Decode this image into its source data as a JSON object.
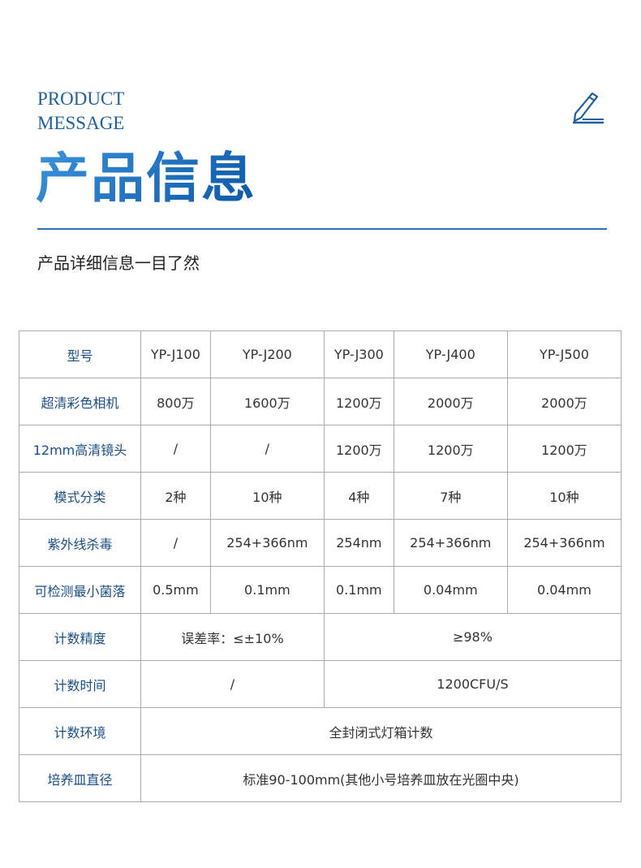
{
  "header": {
    "en_line1": "PRODUCT",
    "en_line2": "MESSAGE",
    "title": "产品信息",
    "subtitle": "产品详细信息一目了然",
    "accent": "#1f5f9e"
  },
  "table": {
    "models": [
      "YP-J100",
      "YP-J200",
      "YP-J300",
      "YP-J400",
      "YP-J500"
    ],
    "rows": [
      {
        "label": "型号"
      },
      {
        "label": "超清彩色相机",
        "cells": [
          "800万",
          "1600万",
          "1200万",
          "2000万",
          "2000万"
        ]
      },
      {
        "label": "12mm高清镜头",
        "cells": [
          "/",
          "/",
          "1200万",
          "1200万",
          "1200万"
        ]
      },
      {
        "label": "模式分类",
        "cells": [
          "2种",
          "10种",
          "4种",
          "7种",
          "10种"
        ]
      },
      {
        "label": "紫外线杀毒",
        "cells": [
          "/",
          "254+366nm",
          "254nm",
          "254+366nm",
          "254+366nm"
        ]
      },
      {
        "label": "可检测最小菌落",
        "cells": [
          "0.5mm",
          "0.1mm",
          "0.1mm",
          "0.04mm",
          "0.04mm"
        ]
      },
      {
        "label": "计数精度",
        "cells": [
          "误差率：≤±10%",
          "≥98%"
        ]
      },
      {
        "label": "计数时间",
        "cells": [
          "/",
          "1200CFU/S"
        ]
      },
      {
        "label": "计数环境",
        "cells": [
          "全封闭式灯箱计数"
        ]
      },
      {
        "label": "培养皿直径",
        "cells": [
          "标准90-100mm(其他小号培养皿放在光圈中央)"
        ]
      }
    ]
  }
}
